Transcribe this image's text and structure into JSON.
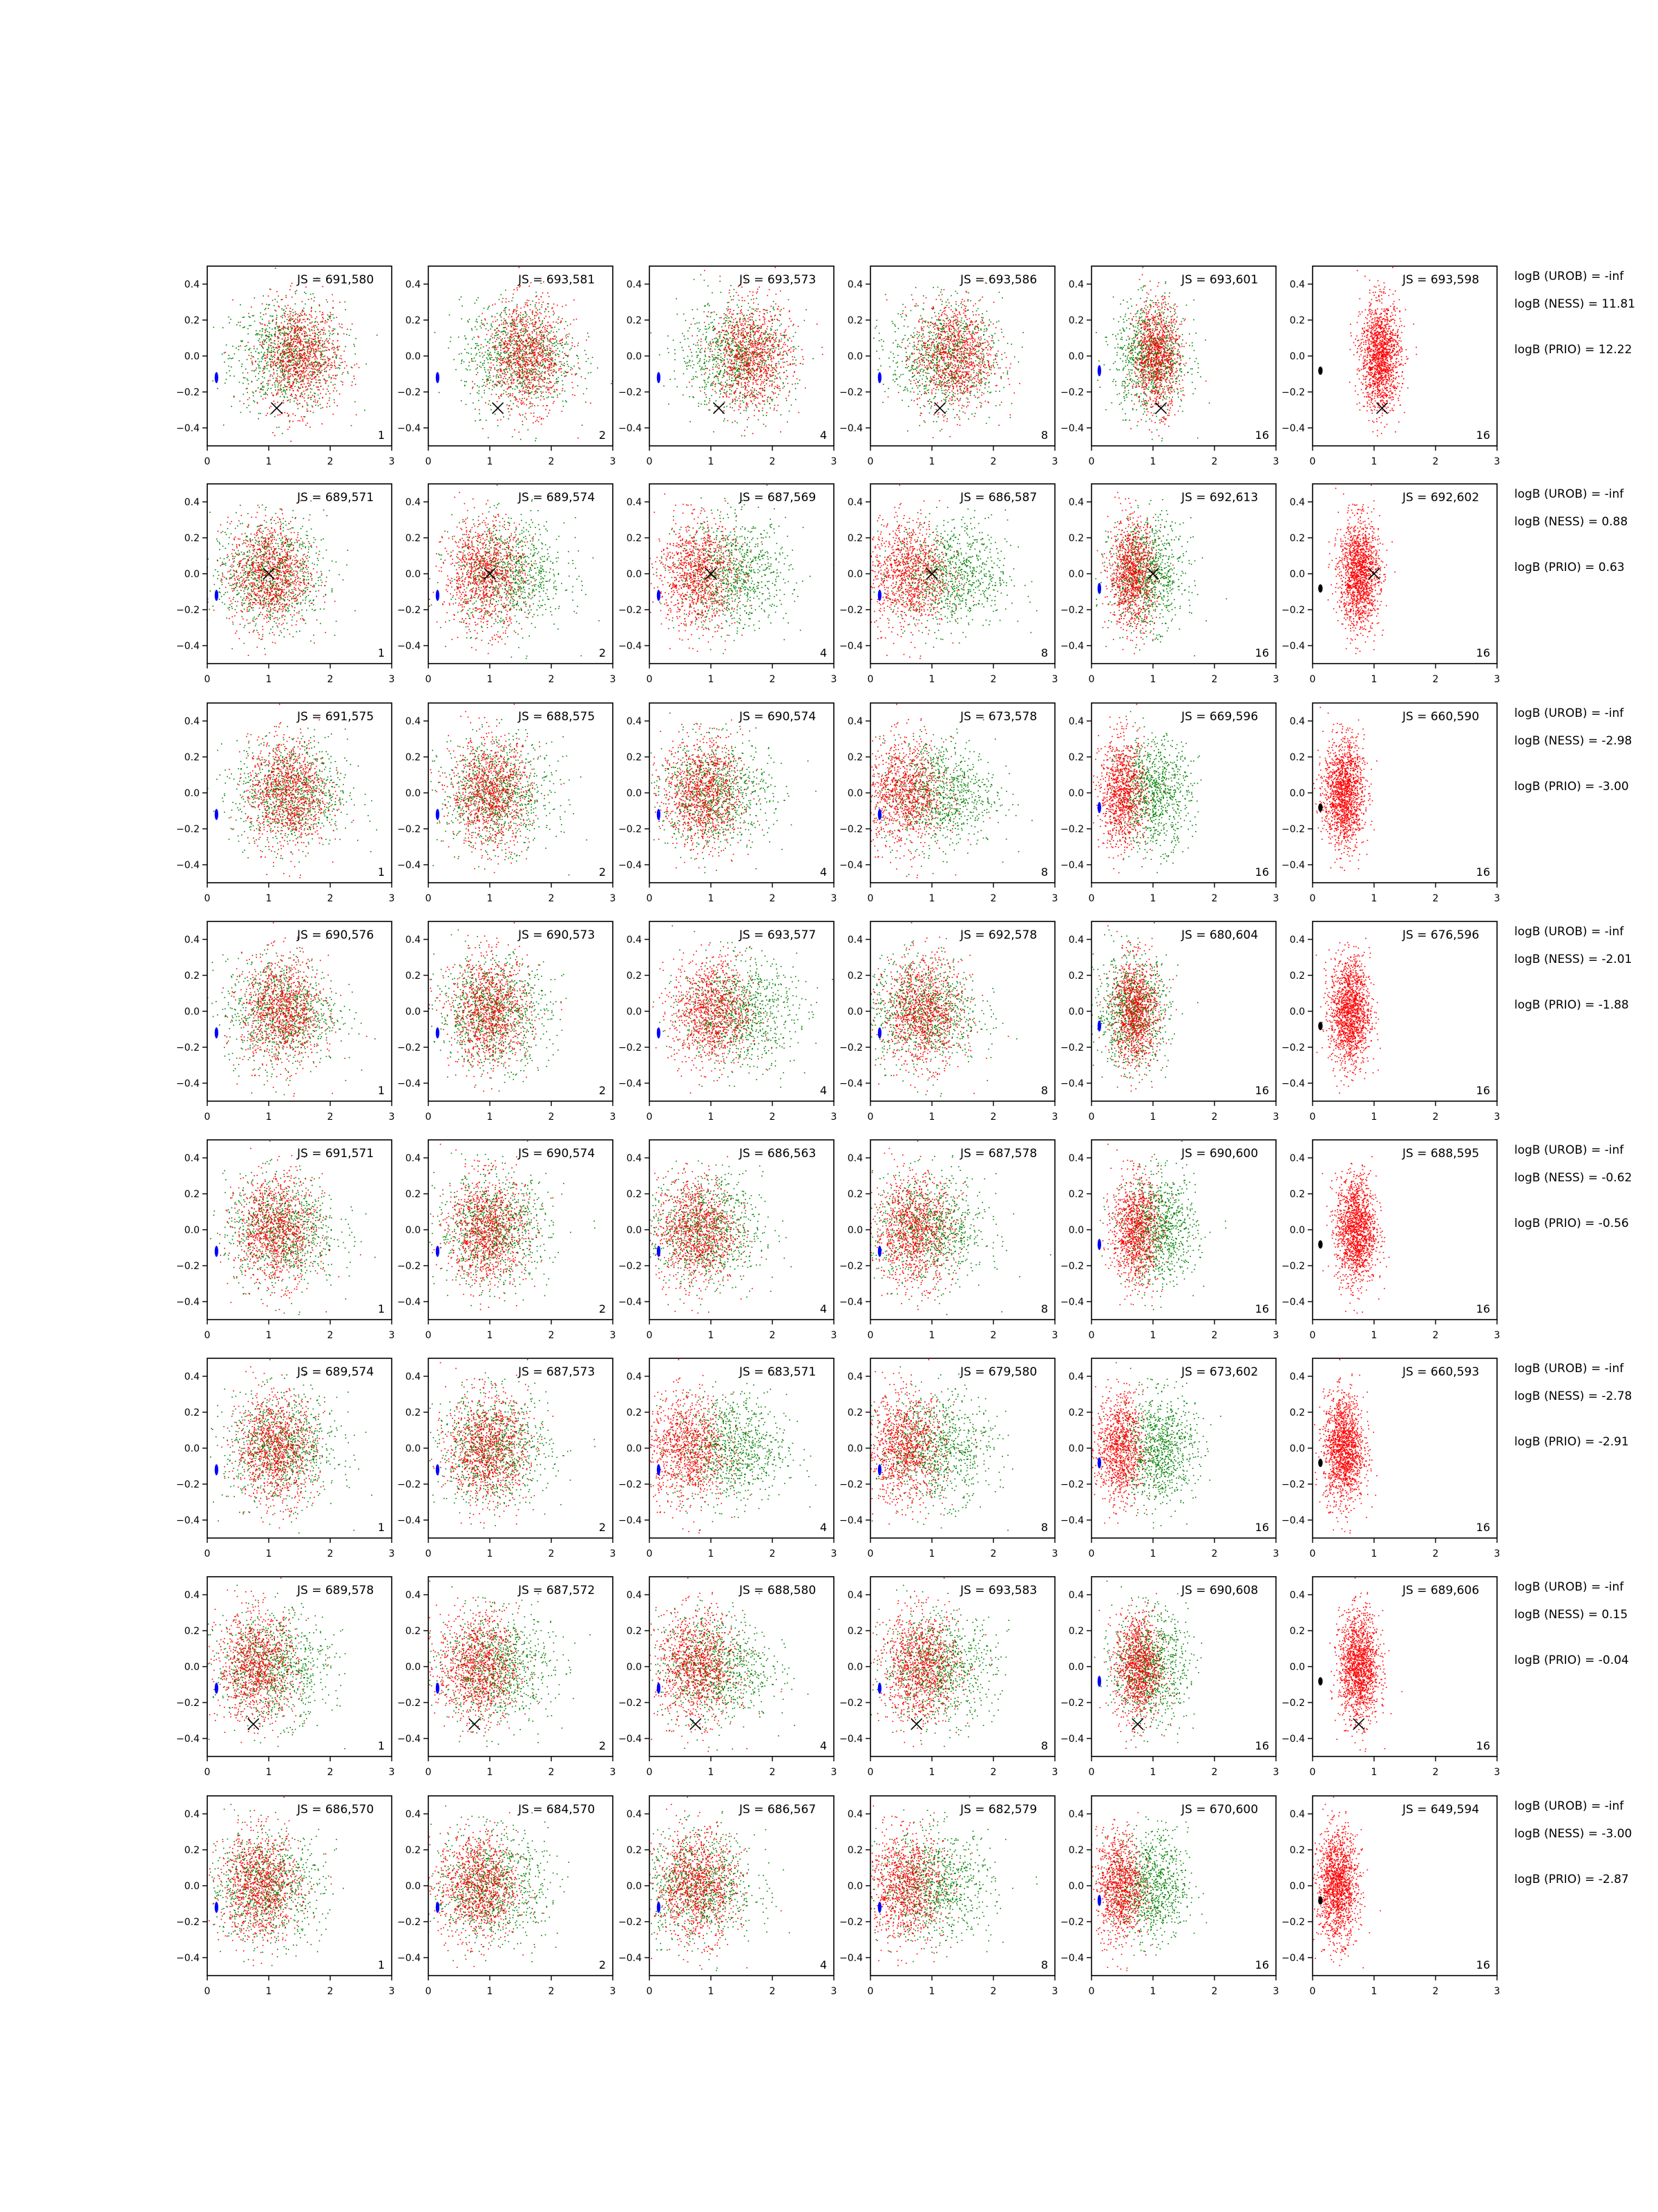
{
  "figure": {
    "type": "scatter-grid",
    "axes": {
      "xlim": [
        0,
        3
      ],
      "ylim": [
        -0.5,
        0.5
      ],
      "xticks": [
        0,
        1,
        2,
        3
      ],
      "yticks": [
        -0.4,
        -0.2,
        0.0,
        0.2,
        0.4
      ],
      "xtick_labels": [
        "0",
        "1",
        "2",
        "3"
      ],
      "ytick_labels": [
        "−0.4",
        "−0.2",
        "0.0",
        "0.2",
        "0.4"
      ]
    },
    "colors": {
      "red_points": "#ff0000",
      "green_points": "#008000",
      "blue_marker": "#0000ff",
      "black_marker": "#000000"
    }
  },
  "chart_data": {
    "type": "scatter",
    "columns": [
      {
        "corner_label": "1"
      },
      {
        "corner_label": "2"
      },
      {
        "corner_label": "4"
      },
      {
        "corner_label": "8"
      },
      {
        "corner_label": "16"
      },
      {
        "corner_label": "16"
      }
    ],
    "rows": [
      {
        "js": [
          "JS = 691,580",
          "JS = 693,581",
          "JS = 693,573",
          "JS = 693,586",
          "JS = 693,601",
          "JS = 693,598"
        ],
        "marker": [
          1.13,
          -0.29
        ],
        "red_center": [
          1.5,
          1.6,
          1.65,
          1.35,
          1.05,
          1.1
        ],
        "green_center": [
          1.3,
          1.45,
          1.4,
          1.2,
          0.95,
          1.1
        ],
        "logB": [
          "logB (UROB) = -inf",
          "logB (NESS) = 11.81",
          "logB (PRIO) = 12.22"
        ]
      },
      {
        "js": [
          "JS = 689,571",
          "JS = 689,574",
          "JS = 687,569",
          "JS = 686,587",
          "JS = 692,613",
          "JS = 692,602"
        ],
        "marker": [
          1.0,
          0.0
        ],
        "red_center": [
          1.0,
          0.9,
          0.75,
          0.6,
          0.65,
          0.75
        ],
        "green_center": [
          1.0,
          1.3,
          1.35,
          1.3,
          0.9,
          0.8
        ],
        "logB": [
          "logB (UROB) = -inf",
          "logB (NESS) = 0.88",
          "logB (PRIO) = 0.63"
        ]
      },
      {
        "js": [
          "JS = 691,575",
          "JS = 688,575",
          "JS = 690,574",
          "JS = 673,578",
          "JS = 669,596",
          "JS = 660,590"
        ],
        "marker": null,
        "red_center": [
          1.3,
          1.0,
          0.85,
          0.55,
          0.5,
          0.5
        ],
        "green_center": [
          1.35,
          1.1,
          1.05,
          1.1,
          1.0,
          0.6
        ],
        "logB": [
          "logB (UROB) = -inf",
          "logB (NESS) = -2.98",
          "logB (PRIO) = -3.00"
        ]
      },
      {
        "js": [
          "JS = 690,576",
          "JS = 690,573",
          "JS = 693,577",
          "JS = 692,578",
          "JS = 680,604",
          "JS = 676,596"
        ],
        "marker": null,
        "red_center": [
          1.2,
          1.0,
          1.0,
          0.85,
          0.7,
          0.6
        ],
        "green_center": [
          1.2,
          1.05,
          1.45,
          0.85,
          0.65,
          0.6
        ],
        "logB": [
          "logB (UROB) = -inf",
          "logB (NESS) = -2.01",
          "logB (PRIO) = -1.88"
        ]
      },
      {
        "js": [
          "JS = 691,571",
          "JS = 690,574",
          "JS = 686,563",
          "JS = 687,578",
          "JS = 690,600",
          "JS = 688,595"
        ],
        "marker": null,
        "red_center": [
          1.1,
          0.95,
          0.75,
          0.7,
          0.7,
          0.7
        ],
        "green_center": [
          1.2,
          1.05,
          0.9,
          0.95,
          1.1,
          0.7
        ],
        "logB": [
          "logB (UROB) = -inf",
          "logB (NESS) = -0.62",
          "logB (PRIO) = -0.56"
        ]
      },
      {
        "js": [
          "JS = 689,574",
          "JS = 687,573",
          "JS = 683,571",
          "JS = 679,580",
          "JS = 673,602",
          "JS = 660,593"
        ],
        "marker": null,
        "red_center": [
          1.1,
          0.95,
          0.6,
          0.55,
          0.45,
          0.5
        ],
        "green_center": [
          1.2,
          1.05,
          1.3,
          1.05,
          1.1,
          0.55
        ],
        "logB": [
          "logB (UROB) = -inf",
          "logB (NESS) = -2.78",
          "logB (PRIO) = -2.91"
        ]
      },
      {
        "js": [
          "JS = 689,578",
          "JS = 687,572",
          "JS = 688,580",
          "JS = 693,583",
          "JS = 690,608",
          "JS = 689,606"
        ],
        "marker": [
          0.75,
          -0.32
        ],
        "red_center": [
          0.8,
          0.8,
          0.75,
          0.8,
          0.75,
          0.75
        ],
        "green_center": [
          1.05,
          1.1,
          1.05,
          1.1,
          0.95,
          0.75
        ],
        "logB": [
          "logB (UROB) = -inf",
          "logB (NESS) = 0.15",
          "logB (PRIO) = -0.04"
        ]
      },
      {
        "js": [
          "JS = 686,570",
          "JS = 684,570",
          "JS = 686,567",
          "JS = 682,579",
          "JS = 670,600",
          "JS = 649,594"
        ],
        "marker": null,
        "red_center": [
          0.85,
          0.8,
          0.75,
          0.55,
          0.45,
          0.4
        ],
        "green_center": [
          0.95,
          1.0,
          0.8,
          1.05,
          0.95,
          0.45
        ],
        "logB": [
          "logB (UROB) = -inf",
          "logB (NESS) = -3.00",
          "logB (PRIO) = -2.87"
        ]
      }
    ],
    "small_marker": {
      "x": 0.15,
      "y": -0.12
    }
  }
}
